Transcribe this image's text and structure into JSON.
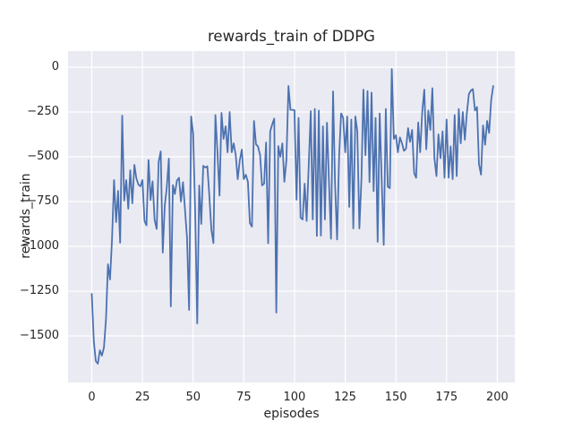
{
  "figure": {
    "title": "rewards_train of DDPG",
    "xlabel": "episodes",
    "ylabel": "rewards_train"
  },
  "colors": {
    "figure_background": "#ffffff",
    "axes_background": "#eaeaf2",
    "grid": "#ffffff",
    "line": "#4c72b0",
    "text": "#262626"
  },
  "chart_data": {
    "type": "line",
    "title": "rewards_train of DDPG",
    "xlabel": "episodes",
    "ylabel": "rewards_train",
    "legend": "none",
    "grid": true,
    "xlim": [
      -12,
      209
    ],
    "ylim": [
      -1760,
      90
    ],
    "xticks": [
      0,
      25,
      50,
      75,
      100,
      125,
      150,
      175,
      200
    ],
    "xtick_labels": [
      "0",
      "25",
      "50",
      "75",
      "100",
      "125",
      "150",
      "175",
      "200"
    ],
    "yticks": [
      0,
      -250,
      -500,
      -750,
      -1000,
      -1250,
      -1500
    ],
    "ytick_labels": [
      "0",
      "−250",
      "−500",
      "−750",
      "−1000",
      "−1250",
      "−1500"
    ],
    "series_name": "rewards_train",
    "x_start": 0,
    "x_step": 1,
    "values": [
      -1265,
      -1530,
      -1640,
      -1655,
      -1580,
      -1610,
      -1565,
      -1405,
      -1100,
      -1185,
      -963,
      -630,
      -865,
      -690,
      -980,
      -270,
      -745,
      -630,
      -790,
      -575,
      -760,
      -545,
      -620,
      -655,
      -665,
      -630,
      -858,
      -883,
      -518,
      -742,
      -637,
      -853,
      -903,
      -528,
      -470,
      -1035,
      -775,
      -670,
      -510,
      -1335,
      -658,
      -708,
      -633,
      -617,
      -750,
      -642,
      -800,
      -953,
      -1355,
      -275,
      -370,
      -810,
      -1430,
      -660,
      -875,
      -550,
      -560,
      -553,
      -717,
      -908,
      -982,
      -267,
      -475,
      -717,
      -255,
      -400,
      -330,
      -475,
      -250,
      -475,
      -425,
      -490,
      -625,
      -520,
      -460,
      -625,
      -600,
      -640,
      -870,
      -890,
      -300,
      -430,
      -443,
      -490,
      -660,
      -650,
      -420,
      -983,
      -358,
      -320,
      -287,
      -1370,
      -440,
      -500,
      -425,
      -640,
      -520,
      -105,
      -238,
      -238,
      -240,
      -740,
      -283,
      -840,
      -850,
      -650,
      -858,
      -550,
      -245,
      -850,
      -233,
      -942,
      -242,
      -940,
      -330,
      -850,
      -310,
      -633,
      -958,
      -135,
      -645,
      -962,
      -492,
      -258,
      -283,
      -475,
      -275,
      -780,
      -292,
      -900,
      -275,
      -358,
      -900,
      -625,
      -125,
      -492,
      -133,
      -642,
      -142,
      -692,
      -283,
      -975,
      -258,
      -625,
      -992,
      -233,
      -667,
      -675,
      -10,
      -400,
      -380,
      -475,
      -392,
      -425,
      -467,
      -455,
      -340,
      -417,
      -350,
      -592,
      -617,
      -308,
      -475,
      -250,
      -125,
      -458,
      -242,
      -350,
      -117,
      -508,
      -608,
      -375,
      -508,
      -358,
      -617,
      -292,
      -617,
      -442,
      -625,
      -267,
      -608,
      -233,
      -425,
      -250,
      -405,
      -258,
      -150,
      -130,
      -122,
      -242,
      -222,
      -542,
      -600,
      -325,
      -433,
      -300,
      -367,
      -183,
      -105
    ]
  }
}
